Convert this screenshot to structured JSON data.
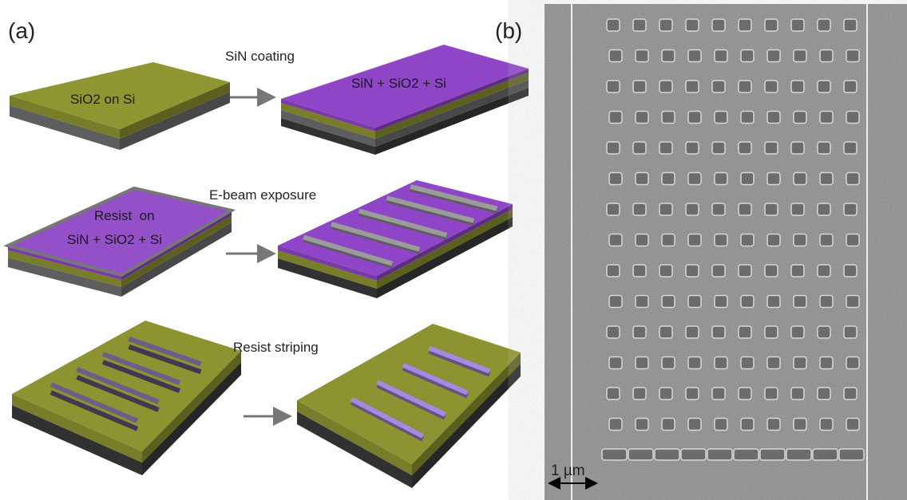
{
  "panel_a": {
    "label": "(a)",
    "processes": [
      "SiN coating",
      "E-beam exposure",
      "Resist striping"
    ],
    "structures": [
      "SiO2 on Si",
      "SiN + SiO2 + Si",
      "Resist  on",
      "SiN + SiO2 + Si"
    ]
  },
  "panel_b": {
    "label": "(b)",
    "scale_bar": "1 µm"
  }
}
